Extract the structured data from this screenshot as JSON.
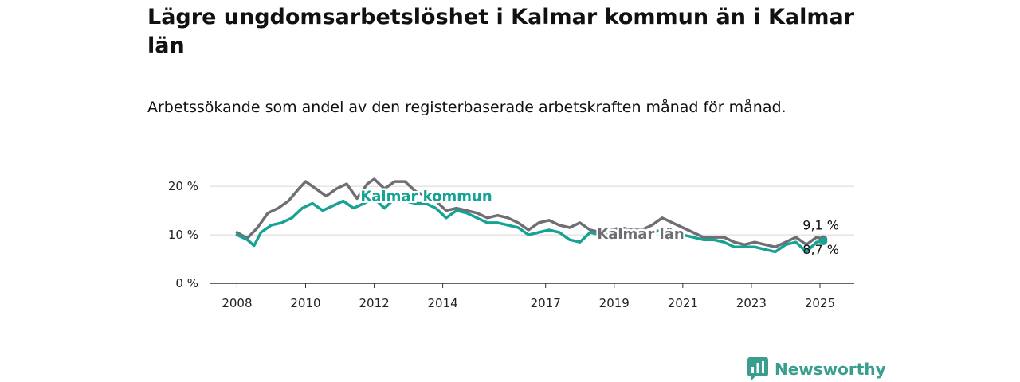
{
  "title": "Lägre ungdomsarbetslöshet i Kalmar kommun än i Kalmar län",
  "subtitle": "Arbetssökande som andel av den registerbaserade arbetskraften månad för månad.",
  "brand": "Newsworthy",
  "chart_data": {
    "type": "line",
    "title": "Lägre ungdomsarbetslöshet i Kalmar kommun än i Kalmar län",
    "subtitle": "Arbetssökande som andel av den registerbaserade arbetskraften månad för månad.",
    "xlabel": "",
    "ylabel": "",
    "xlim": [
      2007.2,
      2026.0
    ],
    "ylim": [
      0,
      22
    ],
    "y_ticks": [
      0,
      10,
      20
    ],
    "y_tick_labels": [
      "0 %",
      "10 %",
      "20 %"
    ],
    "x_ticks": [
      2008,
      2010,
      2012,
      2014,
      2017,
      2019,
      2021,
      2023,
      2025
    ],
    "x_tick_labels": [
      "2008",
      "2010",
      "2012",
      "2014",
      "2017",
      "2019",
      "2021",
      "2023",
      "2025"
    ],
    "grid": "horizontal",
    "legend": "direct labels on lines",
    "series": [
      {
        "name": "Kalmar län",
        "color": "#6e6e73",
        "end_label": "9,1 %",
        "x": [
          2008.0,
          2008.3,
          2008.6,
          2008.9,
          2009.2,
          2009.5,
          2009.8,
          2010.0,
          2010.3,
          2010.6,
          2010.9,
          2011.2,
          2011.5,
          2011.8,
          2012.0,
          2012.3,
          2012.6,
          2012.9,
          2013.2,
          2013.5,
          2013.8,
          2014.1,
          2014.4,
          2014.7,
          2015.0,
          2015.3,
          2015.6,
          2015.9,
          2016.2,
          2016.5,
          2016.8,
          2017.1,
          2017.4,
          2017.7,
          2018.0,
          2018.3,
          2018.6,
          2018.9,
          2019.2,
          2019.5,
          2019.8,
          2020.1,
          2020.4,
          2020.7,
          2021.0,
          2021.3,
          2021.6,
          2021.9,
          2022.2,
          2022.5,
          2022.8,
          2023.1,
          2023.4,
          2023.7,
          2024.0,
          2024.3,
          2024.6,
          2024.9,
          2025.1
        ],
        "values": [
          10.5,
          9.3,
          11.5,
          14.5,
          15.5,
          17.0,
          19.5,
          21.0,
          19.5,
          18.0,
          19.5,
          20.5,
          17.5,
          20.5,
          21.5,
          19.5,
          21.0,
          21.0,
          19.0,
          18.0,
          17.0,
          15.0,
          15.5,
          15.0,
          14.5,
          13.5,
          14.0,
          13.5,
          12.5,
          11.0,
          12.5,
          13.0,
          12.0,
          11.5,
          12.5,
          11.0,
          10.5,
          11.0,
          11.5,
          11.0,
          11.0,
          12.0,
          13.5,
          12.5,
          11.5,
          10.5,
          9.5,
          9.5,
          9.5,
          8.5,
          8.0,
          8.5,
          8.0,
          7.5,
          8.5,
          9.5,
          8.0,
          9.5,
          9.1
        ]
      },
      {
        "name": "Kalmar kommun",
        "color": "#16a394",
        "end_label": "8,7 %",
        "x": [
          2008.0,
          2008.3,
          2008.5,
          2008.7,
          2009.0,
          2009.3,
          2009.6,
          2009.9,
          2010.2,
          2010.5,
          2010.8,
          2011.1,
          2011.4,
          2011.7,
          2012.0,
          2012.3,
          2012.6,
          2012.9,
          2013.2,
          2013.5,
          2013.8,
          2014.1,
          2014.4,
          2014.7,
          2015.0,
          2015.3,
          2015.6,
          2015.9,
          2016.2,
          2016.5,
          2016.8,
          2017.1,
          2017.4,
          2017.7,
          2018.0,
          2018.3,
          2018.6,
          2018.9,
          2019.2,
          2019.5,
          2019.8,
          2020.1,
          2020.4,
          2020.7,
          2021.0,
          2021.3,
          2021.6,
          2021.9,
          2022.2,
          2022.5,
          2022.8,
          2023.1,
          2023.4,
          2023.7,
          2024.0,
          2024.3,
          2024.6,
          2024.9,
          2025.1
        ],
        "values": [
          10.0,
          9.0,
          7.8,
          10.5,
          12.0,
          12.5,
          13.5,
          15.5,
          16.5,
          15.0,
          16.0,
          17.0,
          15.5,
          16.5,
          17.5,
          15.5,
          17.5,
          17.0,
          16.5,
          16.5,
          15.5,
          13.5,
          15.0,
          14.5,
          13.5,
          12.5,
          12.5,
          12.0,
          11.5,
          10.0,
          10.5,
          11.0,
          10.5,
          9.0,
          8.5,
          10.5,
          10.0,
          10.0,
          9.5,
          10.0,
          10.0,
          10.5,
          11.0,
          10.5,
          10.0,
          9.5,
          9.0,
          9.0,
          8.5,
          7.5,
          7.5,
          7.5,
          7.0,
          6.5,
          8.0,
          8.5,
          6.5,
          8.5,
          8.7
        ]
      }
    ]
  }
}
